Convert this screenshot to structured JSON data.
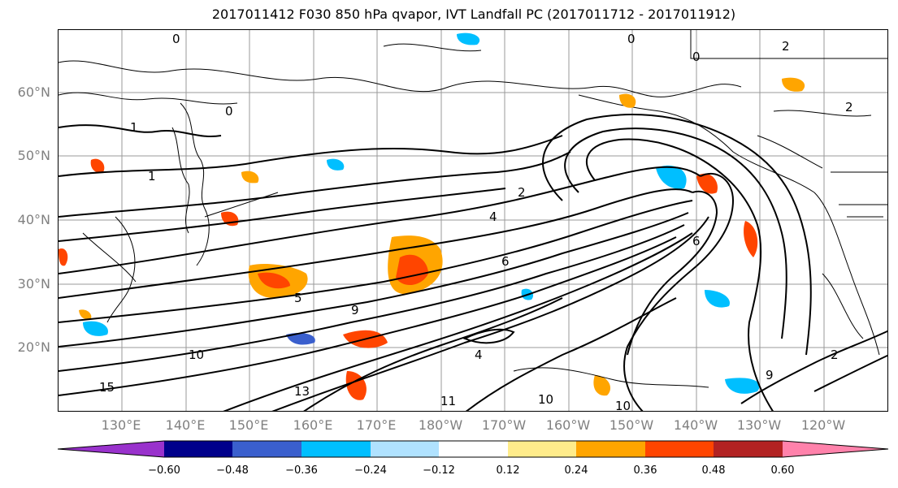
{
  "title": "2017011412 F030 850 hPa qvapor, IVT Landfall PC (2017011712 - 2017011912)",
  "map": {
    "lat_labels": [
      "60°N",
      "50°N",
      "40°N",
      "30°N",
      "20°N"
    ],
    "lon_labels": [
      "130°E",
      "140°E",
      "150°E",
      "160°E",
      "170°E",
      "180°W",
      "170°W",
      "160°W",
      "150°W",
      "140°W",
      "130°W",
      "120°W"
    ],
    "contour_labels": [
      "0",
      "0",
      "0",
      "0",
      "1",
      "1",
      "2",
      "2",
      "2",
      "4",
      "5",
      "6",
      "6",
      "9",
      "10",
      "10",
      "10",
      "11",
      "13",
      "15",
      "4",
      "2",
      "9"
    ]
  },
  "colorbar": {
    "ticks": [
      "−0.60",
      "−0.48",
      "−0.36",
      "−0.24",
      "−0.12",
      "0.12",
      "0.24",
      "0.36",
      "0.48",
      "0.60"
    ],
    "colors": [
      "#9932cc",
      "#00008b",
      "#3a5fcd",
      "#00bfff",
      "#b0e2ff",
      "#ffffff",
      "#ffec8b",
      "#ffa500",
      "#ff4500",
      "#b22222",
      "#ff82ab"
    ]
  }
}
